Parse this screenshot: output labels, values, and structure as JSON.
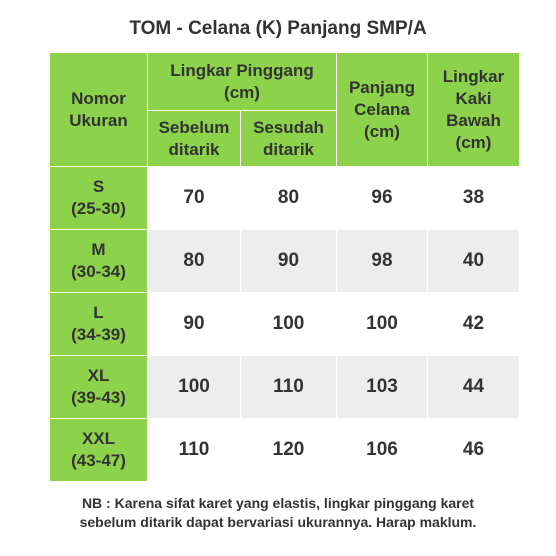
{
  "title": "TOM - Celana (K) Panjang SMP/A",
  "headers": {
    "nomor_ukuran": [
      "Nomor",
      "Ukuran"
    ],
    "lingkar_pinggang": [
      "Lingkar Pinggang",
      "(cm)"
    ],
    "sebelum": [
      "Sebelum",
      "ditarik"
    ],
    "sesudah": [
      "Sesudah",
      "ditarik"
    ],
    "panjang_celana": [
      "Panjang",
      "Celana",
      "(cm)"
    ],
    "lingkar_kaki": [
      "Lingkar",
      "Kaki",
      "Bawah",
      "(cm)"
    ]
  },
  "rows": [
    {
      "size": "S",
      "range": "(25-30)",
      "sebelum": "70",
      "sesudah": "80",
      "panjang": "96",
      "kaki": "38"
    },
    {
      "size": "M",
      "range": "(30-34)",
      "sebelum": "80",
      "sesudah": "90",
      "panjang": "98",
      "kaki": "40"
    },
    {
      "size": "L",
      "range": "(34-39)",
      "sebelum": "90",
      "sesudah": "100",
      "panjang": "100",
      "kaki": "42"
    },
    {
      "size": "XL",
      "range": "(39-43)",
      "sebelum": "100",
      "sesudah": "110",
      "panjang": "103",
      "kaki": "44"
    },
    {
      "size": "XXL",
      "range": "(43-47)",
      "sebelum": "110",
      "sesudah": "120",
      "panjang": "106",
      "kaki": "46"
    }
  ],
  "note": [
    "NB : Karena sifat karet yang elastis, lingkar pinggang karet",
    "sebelum ditarik dapat bervariasi ukurannya. Harap maklum."
  ],
  "colors": {
    "header_green": "#8cd24a",
    "row_alt_gray": "#ededed",
    "text": "#333333"
  }
}
